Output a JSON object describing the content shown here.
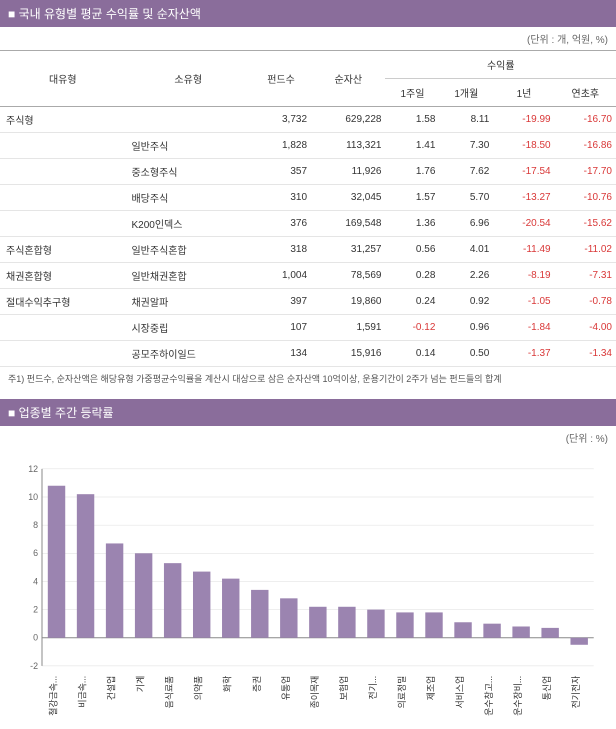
{
  "section1": {
    "title": "■ 국내 유형별 평균 수익률 및 순자산액",
    "unit": "(단위 : 개, 억원, %)",
    "headers": {
      "main_type": "대유형",
      "sub_type": "소유형",
      "fund_count": "펀드수",
      "net_asset": "순자산",
      "return_group": "수익률",
      "w1": "1주일",
      "m1": "1개월",
      "y1": "1년",
      "ytd": "연초후"
    },
    "rows": [
      {
        "main": "주식형",
        "sub": "",
        "funds": "3,732",
        "asset": "629,228",
        "w1": "1.58",
        "m1": "8.11",
        "y1": "-19.99",
        "ytd": "-16.70",
        "y1neg": true,
        "ytdneg": true
      },
      {
        "main": "",
        "sub": "일반주식",
        "funds": "1,828",
        "asset": "113,321",
        "w1": "1.41",
        "m1": "7.30",
        "y1": "-18.50",
        "ytd": "-16.86",
        "y1neg": true,
        "ytdneg": true
      },
      {
        "main": "",
        "sub": "중소형주식",
        "funds": "357",
        "asset": "11,926",
        "w1": "1.76",
        "m1": "7.62",
        "y1": "-17.54",
        "ytd": "-17.70",
        "y1neg": true,
        "ytdneg": true
      },
      {
        "main": "",
        "sub": "배당주식",
        "funds": "310",
        "asset": "32,045",
        "w1": "1.57",
        "m1": "5.70",
        "y1": "-13.27",
        "ytd": "-10.76",
        "y1neg": true,
        "ytdneg": true
      },
      {
        "main": "",
        "sub": "K200인덱스",
        "funds": "376",
        "asset": "169,548",
        "w1": "1.36",
        "m1": "6.96",
        "y1": "-20.54",
        "ytd": "-15.62",
        "y1neg": true,
        "ytdneg": true
      },
      {
        "main": "주식혼합형",
        "sub": "일반주식혼합",
        "funds": "318",
        "asset": "31,257",
        "w1": "0.56",
        "m1": "4.01",
        "y1": "-11.49",
        "ytd": "-11.02",
        "y1neg": true,
        "ytdneg": true
      },
      {
        "main": "채권혼합형",
        "sub": "일반채권혼합",
        "funds": "1,004",
        "asset": "78,569",
        "w1": "0.28",
        "m1": "2.26",
        "y1": "-8.19",
        "ytd": "-7.31",
        "y1neg": true,
        "ytdneg": true
      },
      {
        "main": "절대수익추구형",
        "sub": "채권알파",
        "funds": "397",
        "asset": "19,860",
        "w1": "0.24",
        "m1": "0.92",
        "y1": "-1.05",
        "ytd": "-0.78",
        "y1neg": true,
        "ytdneg": true
      },
      {
        "main": "",
        "sub": "시장중립",
        "funds": "107",
        "asset": "1,591",
        "w1": "-0.12",
        "m1": "0.96",
        "y1": "-1.84",
        "ytd": "-4.00",
        "w1neg": true,
        "y1neg": true,
        "ytdneg": true
      },
      {
        "main": "",
        "sub": "공모주하이일드",
        "funds": "134",
        "asset": "15,916",
        "w1": "0.14",
        "m1": "0.50",
        "y1": "-1.37",
        "ytd": "-1.34",
        "y1neg": true,
        "ytdneg": true
      }
    ],
    "footnote": "주1) 펀드수, 순자산액은 해당유형 가중평균수익률을 계산시 대상으로 삼은 순자산액 10억이상, 운용기간이 2주가 넘는 펀드들의 합계"
  },
  "section2": {
    "title": "■ 업종별 주간 등락률",
    "unit": "(단위 : %)",
    "chart": {
      "type": "bar",
      "ylim": [
        -2,
        12
      ],
      "ytick_step": 2,
      "categories": [
        "철강금속...",
        "비금속...",
        "건설업",
        "기계",
        "음식료품",
        "의약품",
        "화학",
        "증권",
        "유통업",
        "종이목재",
        "보험업",
        "전기...",
        "의료정밀",
        "제조업",
        "서비스업",
        "운수창고...",
        "운수장비...",
        "통신업",
        "전기전자"
      ],
      "values": [
        10.8,
        10.2,
        6.7,
        6.0,
        5.3,
        4.7,
        4.2,
        3.4,
        2.8,
        2.2,
        2.2,
        2.0,
        1.8,
        1.8,
        1.1,
        1.0,
        0.8,
        0.7,
        -0.5
      ],
      "bar_color": "#9b84b0",
      "grid_color": "#dcdcdc",
      "axis_color": "#888"
    }
  }
}
